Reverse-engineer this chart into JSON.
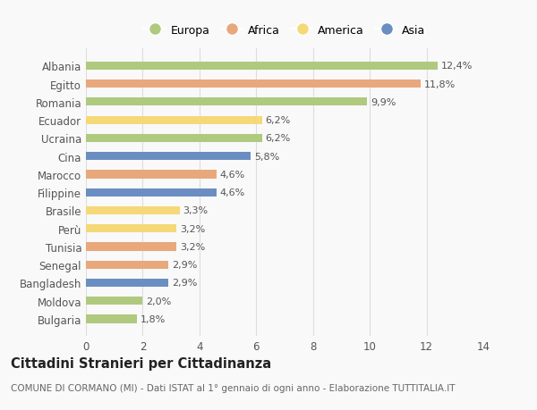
{
  "categories": [
    "Bulgaria",
    "Moldova",
    "Bangladesh",
    "Senegal",
    "Tunisia",
    "Perù",
    "Brasile",
    "Filippine",
    "Marocco",
    "Cina",
    "Ucraina",
    "Ecuador",
    "Romania",
    "Egitto",
    "Albania"
  ],
  "values": [
    1.8,
    2.0,
    2.9,
    2.9,
    3.2,
    3.2,
    3.3,
    4.6,
    4.6,
    5.8,
    6.2,
    6.2,
    9.9,
    11.8,
    12.4
  ],
  "labels": [
    "1,8%",
    "2,0%",
    "2,9%",
    "2,9%",
    "3,2%",
    "3,2%",
    "3,3%",
    "4,6%",
    "4,6%",
    "5,8%",
    "6,2%",
    "6,2%",
    "9,9%",
    "11,8%",
    "12,4%"
  ],
  "continents": [
    "Europa",
    "Europa",
    "Asia",
    "Africa",
    "Africa",
    "America",
    "America",
    "Asia",
    "Africa",
    "Asia",
    "Europa",
    "America",
    "Europa",
    "Africa",
    "Europa"
  ],
  "colors": {
    "Europa": "#afc97e",
    "Africa": "#e8a87c",
    "America": "#f5d878",
    "Asia": "#6b8ec2"
  },
  "title": "Cittadini Stranieri per Cittadinanza",
  "subtitle": "COMUNE DI CORMANO (MI) - Dati ISTAT al 1° gennaio di ogni anno - Elaborazione TUTTITALIA.IT",
  "xlim": [
    0,
    14
  ],
  "xticks": [
    0,
    2,
    4,
    6,
    8,
    10,
    12,
    14
  ],
  "bg_color": "#f9f9f9",
  "bar_height": 0.45,
  "grid_color": "#dddddd",
  "label_fontsize": 8,
  "tick_fontsize": 8.5,
  "title_fontsize": 10.5,
  "subtitle_fontsize": 7.5,
  "legend_order": [
    "Europa",
    "Africa",
    "America",
    "Asia"
  ]
}
